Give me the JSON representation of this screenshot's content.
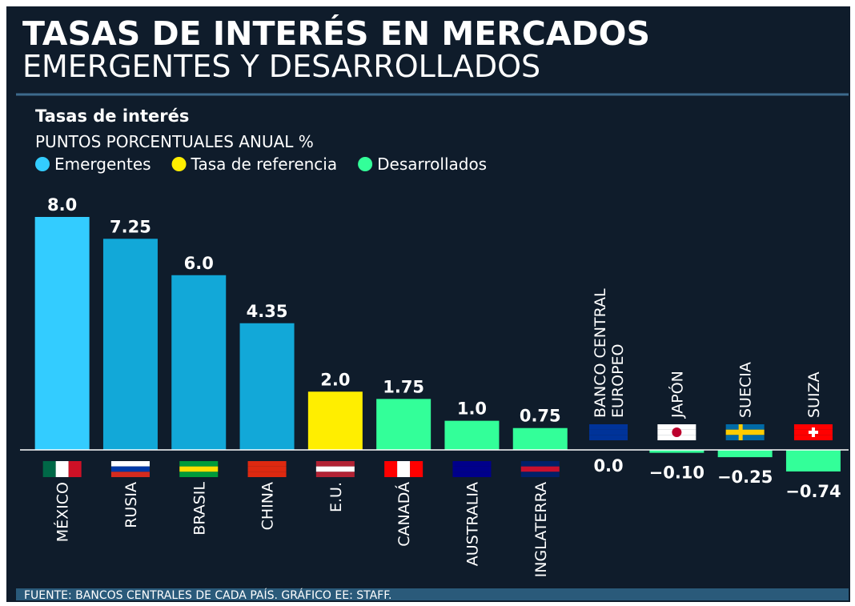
{
  "chart_data": {
    "type": "bar",
    "title": "TASAS DE INTERÉS EN MERCADOS",
    "subtitle": "EMERGENTES Y DESARROLLADOS",
    "chart_title": "Tasas de interés",
    "y_label": "PUNTOS PORCENTUALES ANUAL %",
    "legend": [
      {
        "name": "Emergentes",
        "color": "#33ccff"
      },
      {
        "name": "Tasa de referencia",
        "color": "#ffee00"
      },
      {
        "name": "Desarrollados",
        "color": "#33ff99"
      }
    ],
    "categories": [
      "MÉXICO",
      "RUSIA",
      "BRASIL",
      "CHINA",
      "E.U.",
      "CANADÁ",
      "AUSTRALIA",
      "INGLATERRA",
      "BANCO CENTRAL EUROPEO",
      "JAPÓN",
      "SUECIA",
      "SUIZA"
    ],
    "values": [
      8.0,
      7.25,
      6.0,
      4.35,
      2.0,
      1.75,
      1.0,
      0.75,
      0.0,
      -0.1,
      -0.25,
      -0.74
    ],
    "value_labels": [
      "8.0",
      "7.25",
      "6.0",
      "4.35",
      "2.0",
      "1.75",
      "1.0",
      "0.75",
      "0.0",
      "−0.10",
      "−0.25",
      "−0.74"
    ],
    "colors": [
      "#33ccff",
      "#12a8d8",
      "#12a8d8",
      "#12a8d8",
      "#ffee00",
      "#33ff99",
      "#33ff99",
      "#33ff99",
      "#33ff99",
      "#33ff99",
      "#33ff99",
      "#33ff99"
    ],
    "source": "FUENTE: BANCOS CENTRALES DE CADA PAÍS. GRÁFICO EE: STAFF."
  }
}
